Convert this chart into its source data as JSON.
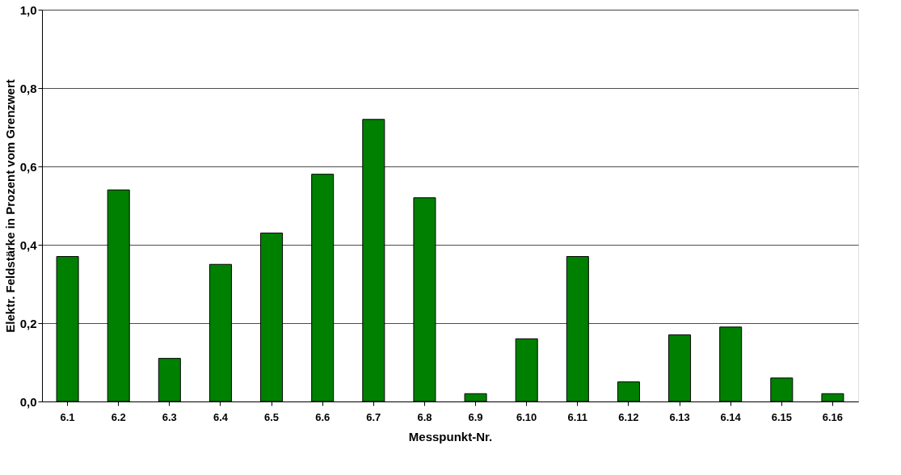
{
  "chart_data": {
    "type": "bar",
    "xlabel": "Messpunkt-Nr.",
    "ylabel": "Elektr. Feldstärke in Prozent vom Grenzwert",
    "categories": [
      "6.1",
      "6.2",
      "6.3",
      "6.4",
      "6.5",
      "6.6",
      "6.7",
      "6.8",
      "6.9",
      "6.10",
      "6.11",
      "6.12",
      "6.13",
      "6.14",
      "6.15",
      "6.16"
    ],
    "values": [
      0.37,
      0.54,
      0.11,
      0.35,
      0.43,
      0.58,
      0.72,
      0.52,
      0.02,
      0.16,
      0.37,
      0.05,
      0.17,
      0.19,
      0.06,
      0.02
    ],
    "color": "#008000",
    "ylim": [
      0,
      1
    ],
    "yticks": [
      {
        "value": 0,
        "label": "0,0"
      },
      {
        "value": 0.2,
        "label": "0,2"
      },
      {
        "value": 0.4,
        "label": "0,4"
      },
      {
        "value": 0.6,
        "label": "0,6"
      },
      {
        "value": 0.8,
        "label": "0,8"
      },
      {
        "value": 1,
        "label": "1,0"
      }
    ],
    "grid": "y"
  }
}
